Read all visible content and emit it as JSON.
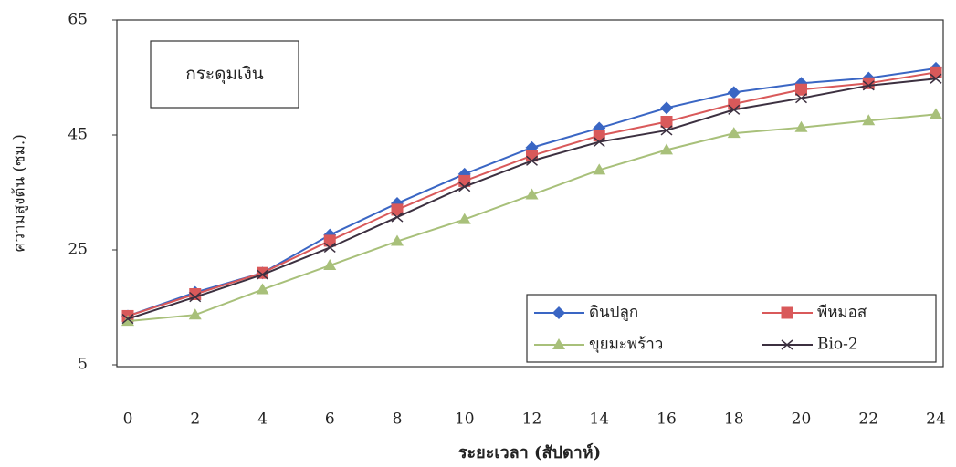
{
  "chart_data": {
    "type": "line",
    "title": "กระดุมเงิน",
    "x_label": "ระยะเวลา (สัปดาห์)",
    "y_label": "ความสูงต้น (ซม.)",
    "x": [
      0,
      2,
      4,
      6,
      8,
      10,
      12,
      14,
      16,
      18,
      20,
      22,
      24
    ],
    "xlim": [
      0,
      24
    ],
    "xticks": [
      0,
      2,
      4,
      6,
      8,
      10,
      12,
      14,
      16,
      18,
      20,
      22,
      24
    ],
    "ylim": [
      5,
      65
    ],
    "yticks": [
      5,
      25,
      45,
      65
    ],
    "grid": false,
    "legend": "lower right",
    "series": [
      {
        "name": "ดินปลูก",
        "color": "#3a66c4",
        "marker": "diamond",
        "values": [
          13.5,
          17.6,
          21,
          27.6,
          33.1,
          38.2,
          42.8,
          46.2,
          49.7,
          52.4,
          54,
          54.9,
          56.6
        ]
      },
      {
        "name": "พีหมอส",
        "color": "#d9595a",
        "marker": "square",
        "values": [
          13.5,
          17.3,
          21,
          26.6,
          32,
          37,
          41.4,
          44.9,
          47.3,
          50.4,
          52.9,
          54,
          55.9
        ]
      },
      {
        "name": "ขุยมะพร้าว",
        "color": "#a8c07a",
        "marker": "triangle",
        "values": [
          12.6,
          13.7,
          18.1,
          22.3,
          26.5,
          30.3,
          34.6,
          38.9,
          42.4,
          45.3,
          46.3,
          47.5,
          48.6
        ]
      },
      {
        "name": "Bio-2",
        "color": "#3c3040",
        "marker": "x",
        "values": [
          13,
          16.8,
          20.7,
          25.4,
          30.7,
          36,
          40.5,
          43.8,
          45.8,
          49.4,
          51.4,
          53.6,
          54.8
        ]
      }
    ]
  }
}
